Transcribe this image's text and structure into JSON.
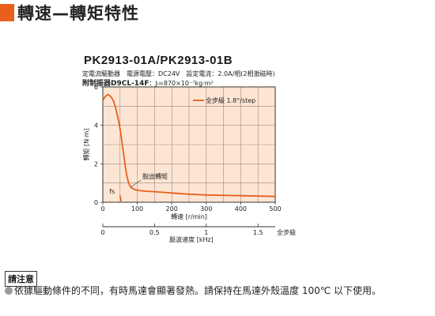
{
  "page_title": "轉速—轉矩特性",
  "model_title": "PK2913-01A/PK2913-01B",
  "spec": {
    "line1": "定電流驅動器　電源電壓：DC24V　設定電流：2.0A/相(2相激磁時)",
    "line2_bold": "附制振器D9CL-14F",
    "line2_rest": "：Jₗ=870×10⁻⁷kg·m²"
  },
  "notice": {
    "heading": "請注意",
    "text": "依據驅動條件的不同，有時馬達會顯著發熱。請保持在馬達外殼溫度 100℃ 以下使用。"
  },
  "colors": {
    "accent": "#e8601c",
    "plot_bg": "#fde5d3",
    "curve": "#e8601c"
  },
  "chart_data": {
    "type": "line",
    "xlabel": "轉速 [r/min]",
    "ylabel": "轉矩 [N·m]",
    "xlim": [
      0,
      500
    ],
    "ylim": [
      0,
      6
    ],
    "xticks": [
      0,
      100,
      200,
      300,
      400,
      500
    ],
    "yticks": [
      0,
      2,
      4,
      6
    ],
    "grid": true,
    "legend": "top-right",
    "series": [
      {
        "name": "全步級 1.8°/step",
        "x": [
          0,
          5,
          10,
          15,
          20,
          25,
          30,
          35,
          40,
          45,
          50,
          55,
          60,
          65,
          70,
          75,
          80,
          90,
          100,
          120,
          150,
          200,
          250,
          300,
          400,
          500
        ],
        "y": [
          5.3,
          5.45,
          5.55,
          5.6,
          5.55,
          5.45,
          5.3,
          5.05,
          4.7,
          4.3,
          3.8,
          3.2,
          2.55,
          1.9,
          1.35,
          1.0,
          0.8,
          0.68,
          0.62,
          0.58,
          0.55,
          0.48,
          0.42,
          0.38,
          0.34,
          0.3
        ]
      }
    ],
    "annotations": [
      {
        "text": "脫出轉矩",
        "x": 115,
        "y": 1.35
      },
      {
        "text": "fs",
        "x": 60,
        "y": 0.28
      }
    ],
    "fs_segment": {
      "x": [
        50,
        53
      ],
      "y": [
        0.35,
        0.05
      ]
    },
    "secondary_axis": {
      "label": "脈波速度 [kHz]",
      "mode_label": "全步級",
      "ticks": [
        0,
        0.5,
        1,
        1.5
      ],
      "tick_labels": [
        "0",
        "0.5",
        "1",
        "1.5"
      ],
      "kHz_per_rpm": 0.0033333
    }
  }
}
